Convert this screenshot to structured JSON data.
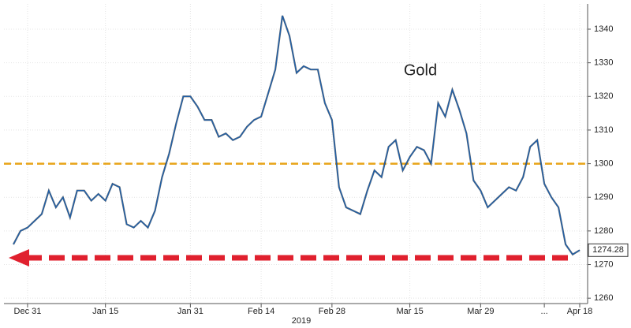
{
  "chart_data": {
    "type": "line",
    "xlabel": "2019",
    "categories": [
      null,
      null,
      "Dec 31",
      null,
      null,
      null,
      null,
      null,
      null,
      null,
      null,
      null,
      null,
      "Jan 15",
      null,
      null,
      null,
      null,
      null,
      null,
      null,
      null,
      null,
      null,
      null,
      "Jan 31",
      null,
      null,
      null,
      null,
      null,
      null,
      null,
      null,
      null,
      "Feb 14",
      null,
      null,
      null,
      null,
      null,
      null,
      null,
      null,
      null,
      "Feb 28",
      null,
      null,
      null,
      null,
      null,
      null,
      null,
      null,
      null,
      null,
      "Mar 15",
      null,
      null,
      null,
      null,
      null,
      null,
      null,
      null,
      null,
      "Mar 29",
      null,
      null,
      null,
      null,
      null,
      null,
      null,
      null,
      "...",
      null,
      null,
      null,
      null,
      "Apr 18"
    ],
    "series": [
      {
        "name": "Gold",
        "color": "#1f5fa8",
        "values": [
          1276,
          1280,
          1281,
          1283,
          1285,
          1292,
          1287,
          1290,
          1284,
          1292,
          1292,
          1289,
          1291,
          1289,
          1294,
          1293,
          1282,
          1281,
          1283,
          1281,
          1286,
          1296,
          1303,
          1312,
          1320,
          1320,
          1317,
          1313,
          1313,
          1308,
          1309,
          1307,
          1308,
          1311,
          1313,
          1314,
          1321,
          1328,
          1344,
          1338,
          1327,
          1329,
          1328,
          1328,
          1318,
          1313,
          1293,
          1287,
          1286,
          1285,
          1292,
          1298,
          1296,
          1305,
          1307,
          1298,
          1302,
          1305,
          1304,
          1300,
          1318,
          1314,
          1322,
          1316,
          1309,
          1295,
          1292,
          1287,
          1289,
          1291,
          1293,
          1292,
          1296,
          1305,
          1307,
          1294,
          1290,
          1287,
          1276,
          1273,
          1274.28
        ]
      }
    ],
    "ylim": [
      1258.4,
      1347.5
    ],
    "yticks": [
      1260,
      1270,
      1280,
      1290,
      1300,
      1310,
      1320,
      1330,
      1340
    ],
    "reference_lines": [
      {
        "value": 1300,
        "color": "#e8a317"
      },
      {
        "value": 1272,
        "color": "#e0202e"
      }
    ],
    "grid": true
  }
}
